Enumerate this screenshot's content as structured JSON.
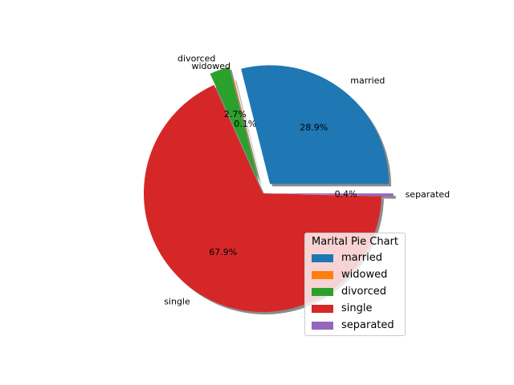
{
  "chart_data": {
    "type": "pie",
    "title": "",
    "legend_title": "Marital Pie Chart",
    "legend_placement": "lower-right",
    "shadow": true,
    "start_angle_deg": 0,
    "slices": [
      {
        "label": "married",
        "percent": 28.9,
        "percent_label": "28.9%",
        "color": "#1f77b4",
        "exploded": true
      },
      {
        "label": "widowed",
        "percent": 0.1,
        "percent_label": "0.1%",
        "color": "#ff7f0e",
        "exploded": false
      },
      {
        "label": "divorced",
        "percent": 2.7,
        "percent_label": "2.7%",
        "color": "#2ca02c",
        "exploded": true
      },
      {
        "label": "single",
        "percent": 67.9,
        "percent_label": "67.9%",
        "color": "#d62728",
        "exploded": false
      },
      {
        "label": "separated",
        "percent": 0.4,
        "percent_label": "0.4%",
        "color": "#9467bd",
        "exploded": true
      }
    ]
  }
}
